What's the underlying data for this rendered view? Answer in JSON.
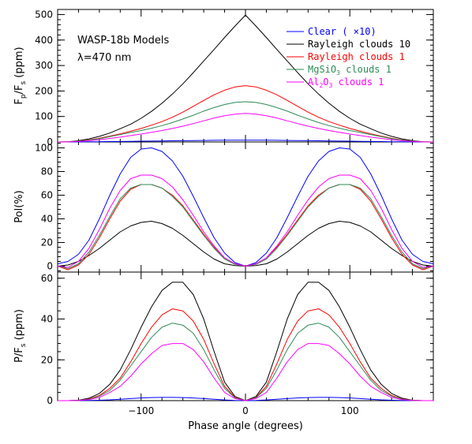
{
  "figure": {
    "annotation_line1": "WASP-18b Models",
    "annotation_line2": "λ=470 nm",
    "xlabel": "Phase angle (degrees)"
  },
  "series_meta": [
    {
      "key": "clear",
      "color": "#0000ff"
    },
    {
      "key": "ray10",
      "color": "#000000"
    },
    {
      "key": "ray1",
      "color": "#ff0000"
    },
    {
      "key": "mgsio3",
      "color": "#2e8b57"
    },
    {
      "key": "al2o3",
      "color": "#ff00ff"
    }
  ],
  "legend": {
    "clear_label": "Clear ( ×10)",
    "ray10_label": "Rayleigh clouds 10",
    "ray1_label": "Rayleigh clouds 1",
    "mgsio3_prefix": "MgSiO",
    "mgsio3_sub": "3",
    "mgsio3_suffix": " clouds 1",
    "al2o3_prefix": "Al",
    "al2o3_sub1": "2",
    "al2o3_mid": "O",
    "al2o3_sub2": "3",
    "al2o3_suffix": " clouds 1"
  },
  "chart_data": [
    {
      "type": "line",
      "panel": "top",
      "ylabel_main": "F",
      "ylabel_sub1": "p",
      "ylabel_mid": "/F",
      "ylabel_sub2": "s",
      "ylabel_unit": " (ppm)",
      "xlim": [
        -180,
        180
      ],
      "ylim": [
        0,
        520
      ],
      "yticks": [
        0,
        100,
        200,
        300,
        400,
        500
      ],
      "xticks": [
        -100,
        0,
        100
      ],
      "x": [
        -180,
        -170,
        -160,
        -150,
        -140,
        -130,
        -120,
        -110,
        -100,
        -90,
        -80,
        -70,
        -60,
        -50,
        -40,
        -30,
        -20,
        -10,
        0,
        10,
        20,
        30,
        40,
        50,
        60,
        70,
        80,
        90,
        100,
        110,
        120,
        130,
        140,
        150,
        160,
        170,
        180
      ],
      "series": [
        {
          "key": "clear",
          "values": [
            0,
            0,
            0.3,
            0.6,
            1,
            1.5,
            2,
            2.5,
            3,
            3.5,
            4,
            4.5,
            5,
            5.5,
            6,
            6.5,
            7,
            7,
            7,
            7,
            7,
            6.5,
            6,
            5.5,
            5,
            4.5,
            4,
            3.5,
            3,
            2.5,
            2,
            1.5,
            1,
            0.6,
            0.3,
            0,
            0
          ]
        },
        {
          "key": "ray10",
          "values": [
            0,
            1,
            5,
            12,
            22,
            35,
            52,
            70,
            93,
            120,
            152,
            188,
            228,
            272,
            318,
            363,
            410,
            455,
            498,
            455,
            410,
            363,
            318,
            272,
            228,
            188,
            152,
            120,
            93,
            70,
            52,
            35,
            22,
            12,
            5,
            1,
            0
          ]
        },
        {
          "key": "ray1",
          "values": [
            0,
            0.5,
            3,
            8,
            15,
            23,
            32,
            42,
            53,
            66,
            80,
            97,
            117,
            140,
            163,
            185,
            203,
            216,
            221,
            216,
            203,
            185,
            163,
            140,
            117,
            97,
            80,
            66,
            53,
            42,
            32,
            23,
            15,
            8,
            3,
            0.5,
            0
          ]
        },
        {
          "key": "mgsio3",
          "values": [
            0,
            0.5,
            3,
            7,
            13,
            21,
            29,
            37,
            45,
            54,
            64,
            76,
            90,
            105,
            121,
            135,
            147,
            155,
            158,
            155,
            147,
            135,
            121,
            105,
            90,
            76,
            64,
            54,
            45,
            37,
            29,
            21,
            13,
            7,
            3,
            0.5,
            0
          ]
        },
        {
          "key": "al2o3",
          "values": [
            0,
            0.3,
            2,
            5,
            9,
            14,
            19,
            25,
            31,
            38,
            45,
            53,
            62,
            72,
            83,
            94,
            103,
            109,
            112,
            109,
            103,
            94,
            83,
            72,
            62,
            53,
            45,
            38,
            31,
            25,
            19,
            14,
            9,
            5,
            2,
            0.3,
            0
          ]
        }
      ]
    },
    {
      "type": "line",
      "panel": "middle",
      "ylabel": "Pol(%)",
      "xlim": [
        -180,
        180
      ],
      "ylim": [
        -5,
        105
      ],
      "yticks": [
        0,
        20,
        40,
        60,
        80,
        100
      ],
      "xticks": [
        -100,
        0,
        100
      ],
      "x": [
        -180,
        -170,
        -160,
        -150,
        -140,
        -130,
        -120,
        -110,
        -100,
        -90,
        -80,
        -70,
        -60,
        -50,
        -40,
        -30,
        -20,
        -10,
        0,
        10,
        20,
        30,
        40,
        50,
        60,
        70,
        80,
        90,
        100,
        110,
        120,
        130,
        140,
        150,
        160,
        170,
        180
      ],
      "series": [
        {
          "key": "clear",
          "values": [
            2,
            4,
            10,
            22,
            40,
            60,
            78,
            92,
            99,
            100,
            97,
            89,
            76,
            59,
            41,
            24,
            11,
            3,
            0,
            3,
            11,
            24,
            41,
            59,
            76,
            89,
            97,
            100,
            99,
            92,
            78,
            60,
            40,
            22,
            10,
            4,
            2
          ]
        },
        {
          "key": "ray10",
          "values": [
            0,
            1,
            4,
            9,
            15,
            22,
            29,
            34,
            37,
            38,
            36,
            32,
            26,
            19,
            12,
            6,
            2,
            0.5,
            0,
            0.5,
            2,
            6,
            12,
            19,
            26,
            32,
            36,
            38,
            37,
            34,
            29,
            22,
            15,
            9,
            4,
            1,
            0
          ]
        },
        {
          "key": "ray1",
          "values": [
            0,
            -3,
            1,
            10,
            24,
            40,
            55,
            65,
            69,
            69,
            66,
            60,
            51,
            39,
            27,
            16,
            7,
            2,
            0,
            2,
            7,
            16,
            27,
            39,
            51,
            60,
            66,
            69,
            69,
            65,
            55,
            40,
            24,
            10,
            1,
            -3,
            0
          ]
        },
        {
          "key": "mgsio3",
          "values": [
            0,
            -2,
            2,
            12,
            26,
            42,
            57,
            66,
            69,
            69,
            66,
            59,
            50,
            38,
            26,
            15,
            6,
            1.5,
            0,
            1.5,
            6,
            15,
            26,
            38,
            50,
            59,
            66,
            69,
            69,
            66,
            57,
            42,
            26,
            12,
            2,
            -2,
            0
          ]
        },
        {
          "key": "al2o3",
          "values": [
            0,
            -1,
            4,
            15,
            31,
            49,
            64,
            74,
            77,
            77,
            74,
            67,
            56,
            43,
            29,
            17,
            7,
            2,
            0,
            2,
            7,
            17,
            29,
            43,
            56,
            67,
            74,
            77,
            77,
            74,
            64,
            49,
            31,
            15,
            4,
            -1,
            0
          ]
        }
      ]
    },
    {
      "type": "line",
      "panel": "bottom",
      "ylabel_main": "P/F",
      "ylabel_sub": "s",
      "ylabel_unit": " (ppm)",
      "xlim": [
        -180,
        180
      ],
      "ylim": [
        0,
        63
      ],
      "yticks": [
        0,
        20,
        40,
        60
      ],
      "xticks": [
        -100,
        0,
        100
      ],
      "x": [
        -180,
        -170,
        -160,
        -150,
        -140,
        -130,
        -120,
        -110,
        -100,
        -90,
        -80,
        -70,
        -60,
        -50,
        -40,
        -30,
        -20,
        -10,
        0,
        10,
        20,
        30,
        40,
        50,
        60,
        70,
        80,
        90,
        100,
        110,
        120,
        130,
        140,
        150,
        160,
        170,
        180
      ],
      "series": [
        {
          "key": "clear",
          "values": [
            0,
            0,
            0.02,
            0.07,
            0.2,
            0.4,
            0.7,
            1,
            1.3,
            1.5,
            1.6,
            1.6,
            1.5,
            1.3,
            1,
            0.7,
            0.35,
            0.1,
            0,
            0.1,
            0.35,
            0.7,
            1,
            1.3,
            1.5,
            1.6,
            1.6,
            1.5,
            1.3,
            1,
            0.7,
            0.4,
            0.2,
            0.07,
            0.02,
            0,
            0
          ]
        },
        {
          "key": "ray10",
          "values": [
            0,
            0,
            0.2,
            1.2,
            3.5,
            8,
            15,
            25,
            36,
            46,
            54,
            58,
            58,
            52,
            40,
            24,
            9,
            2,
            0,
            2,
            9,
            24,
            40,
            52,
            58,
            58,
            54,
            46,
            36,
            25,
            15,
            8,
            3.5,
            1.2,
            0.2,
            0,
            0
          ]
        },
        {
          "key": "ray1",
          "values": [
            0,
            0,
            0.1,
            0.8,
            2.5,
            6,
            11,
            19,
            28,
            36,
            42,
            45,
            44,
            39,
            30,
            18,
            7,
            1.5,
            0,
            1.5,
            7,
            18,
            30,
            39,
            44,
            45,
            42,
            36,
            28,
            19,
            11,
            6,
            2.5,
            0.8,
            0.1,
            0,
            0
          ]
        },
        {
          "key": "mgsio3",
          "values": [
            0,
            0,
            0.1,
            0.7,
            2.2,
            5,
            10,
            17,
            24,
            31,
            36,
            38,
            37,
            33,
            25,
            15,
            6,
            1.3,
            0,
            1.3,
            6,
            15,
            25,
            33,
            37,
            38,
            36,
            31,
            24,
            17,
            10,
            5,
            2.2,
            0.7,
            0.1,
            0,
            0
          ]
        },
        {
          "key": "al2o3",
          "values": [
            0,
            0,
            0.1,
            0.5,
            1.6,
            4,
            7,
            12,
            18,
            23,
            27,
            28,
            28,
            25,
            19,
            11,
            4,
            1,
            0,
            1,
            4,
            11,
            19,
            25,
            28,
            28,
            27,
            23,
            18,
            12,
            7,
            4,
            1.6,
            0.5,
            0.1,
            0,
            0
          ]
        }
      ]
    }
  ]
}
